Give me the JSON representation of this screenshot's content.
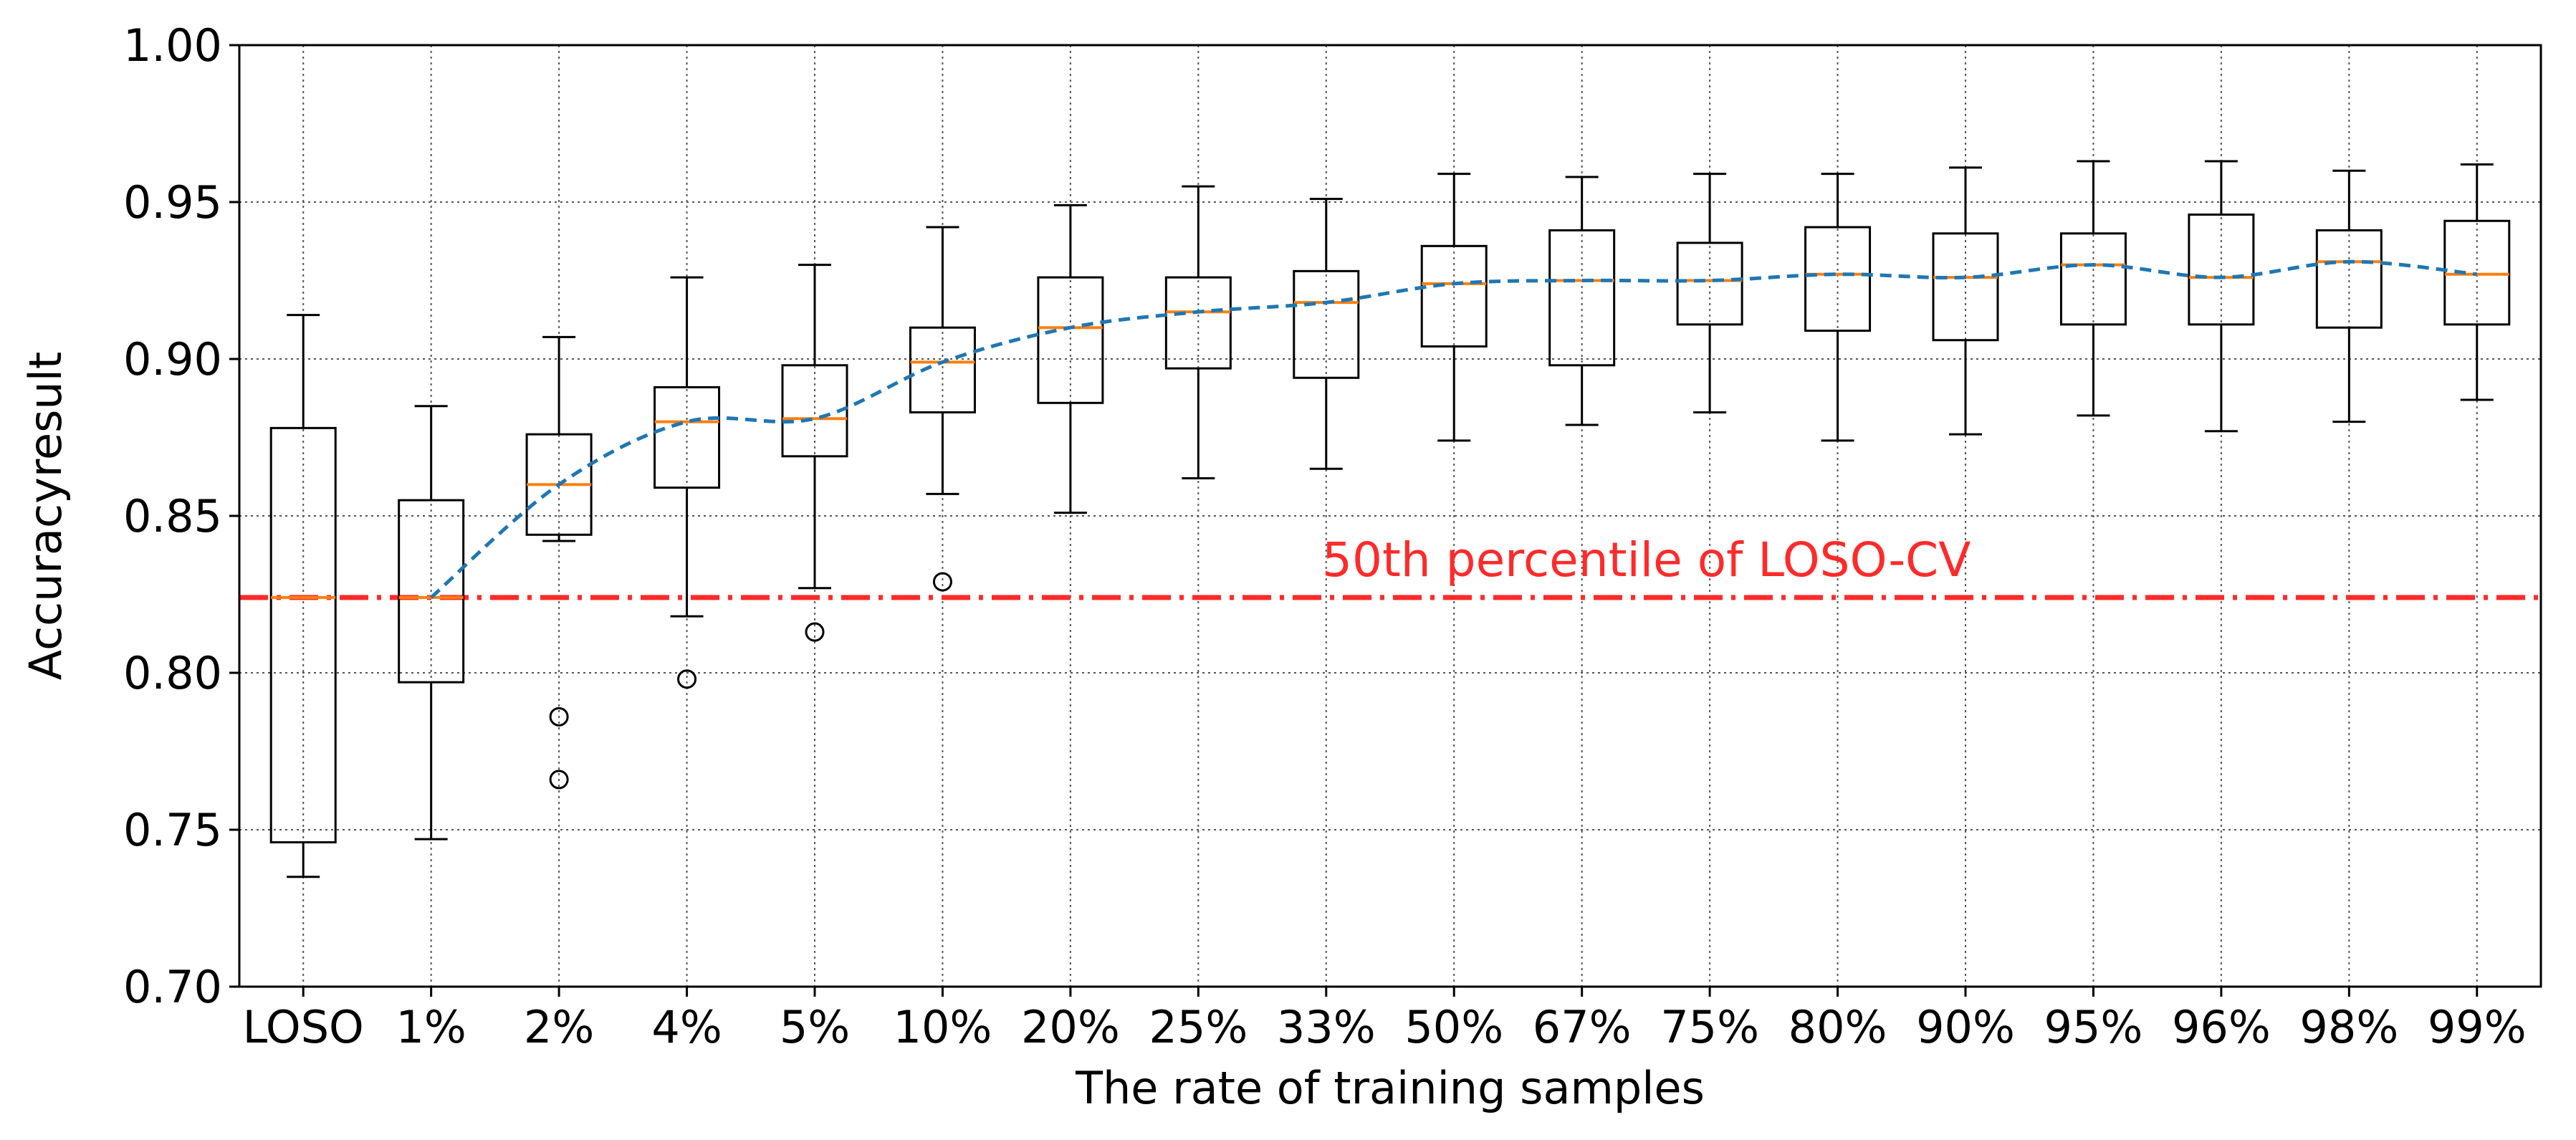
{
  "chart_data": {
    "type": "box",
    "title": "",
    "xlabel": "The rate of training samples",
    "ylabel": "Accuracyresult",
    "ylim": [
      0.7,
      1.0
    ],
    "yticks": [
      "0.70",
      "0.75",
      "0.80",
      "0.85",
      "0.90",
      "0.95",
      "1.00"
    ],
    "grid": true,
    "categories": [
      "LOSO",
      "1%",
      "2%",
      "4%",
      "5%",
      "10%",
      "20%",
      "25%",
      "33%",
      "50%",
      "67%",
      "75%",
      "80%",
      "90%",
      "95%",
      "96%",
      "98%",
      "99%"
    ],
    "boxes": [
      {
        "whislo": 0.735,
        "q1": 0.746,
        "med": 0.824,
        "q3": 0.878,
        "whishi": 0.914,
        "fliers": []
      },
      {
        "whislo": 0.747,
        "q1": 0.797,
        "med": 0.824,
        "q3": 0.855,
        "whishi": 0.885,
        "fliers": []
      },
      {
        "whislo": 0.842,
        "q1": 0.844,
        "med": 0.86,
        "q3": 0.876,
        "whishi": 0.907,
        "fliers": [
          0.766,
          0.786
        ]
      },
      {
        "whislo": 0.818,
        "q1": 0.859,
        "med": 0.88,
        "q3": 0.891,
        "whishi": 0.926,
        "fliers": [
          0.798
        ]
      },
      {
        "whislo": 0.827,
        "q1": 0.869,
        "med": 0.881,
        "q3": 0.898,
        "whishi": 0.93,
        "fliers": [
          0.813
        ]
      },
      {
        "whislo": 0.857,
        "q1": 0.883,
        "med": 0.899,
        "q3": 0.91,
        "whishi": 0.942,
        "fliers": [
          0.829
        ]
      },
      {
        "whislo": 0.851,
        "q1": 0.886,
        "med": 0.91,
        "q3": 0.926,
        "whishi": 0.949,
        "fliers": []
      },
      {
        "whislo": 0.862,
        "q1": 0.897,
        "med": 0.915,
        "q3": 0.926,
        "whishi": 0.955,
        "fliers": []
      },
      {
        "whislo": 0.865,
        "q1": 0.894,
        "med": 0.918,
        "q3": 0.928,
        "whishi": 0.951,
        "fliers": []
      },
      {
        "whislo": 0.874,
        "q1": 0.904,
        "med": 0.924,
        "q3": 0.936,
        "whishi": 0.959,
        "fliers": []
      },
      {
        "whislo": 0.879,
        "q1": 0.898,
        "med": 0.925,
        "q3": 0.941,
        "whishi": 0.958,
        "fliers": []
      },
      {
        "whislo": 0.883,
        "q1": 0.911,
        "med": 0.925,
        "q3": 0.937,
        "whishi": 0.959,
        "fliers": []
      },
      {
        "whislo": 0.874,
        "q1": 0.909,
        "med": 0.927,
        "q3": 0.942,
        "whishi": 0.959,
        "fliers": []
      },
      {
        "whislo": 0.876,
        "q1": 0.906,
        "med": 0.926,
        "q3": 0.94,
        "whishi": 0.961,
        "fliers": []
      },
      {
        "whislo": 0.882,
        "q1": 0.911,
        "med": 0.93,
        "q3": 0.94,
        "whishi": 0.963,
        "fliers": []
      },
      {
        "whislo": 0.877,
        "q1": 0.911,
        "med": 0.926,
        "q3": 0.946,
        "whishi": 0.963,
        "fliers": []
      },
      {
        "whislo": 0.88,
        "q1": 0.91,
        "med": 0.931,
        "q3": 0.941,
        "whishi": 0.96,
        "fliers": []
      },
      {
        "whislo": 0.887,
        "q1": 0.911,
        "med": 0.927,
        "q3": 0.944,
        "whishi": 0.962,
        "fliers": []
      }
    ],
    "median_trend": {
      "name": "Median trend",
      "start_index": 1,
      "values": [
        0.824,
        0.86,
        0.88,
        0.881,
        0.899,
        0.91,
        0.915,
        0.918,
        0.924,
        0.925,
        0.925,
        0.927,
        0.926,
        0.93,
        0.926,
        0.931,
        0.927
      ]
    },
    "reference_line": {
      "value": 0.824,
      "label": "50th percentile of LOSO-CV"
    },
    "colors": {
      "box": "#000000",
      "median": "#ff7f0e",
      "trend": "#1f77b4",
      "reference": "#ff2a2a",
      "grid": "#555555"
    }
  }
}
